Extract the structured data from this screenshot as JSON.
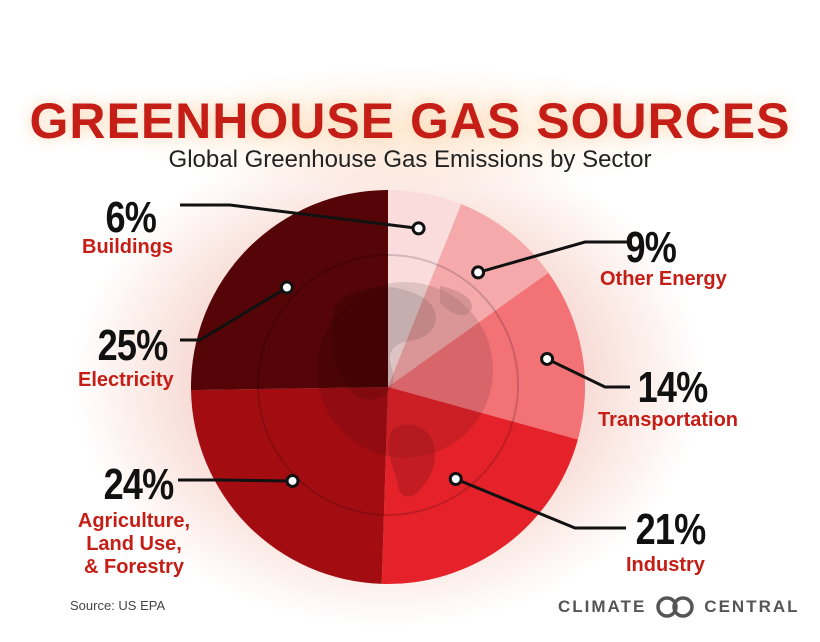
{
  "title": "GREENHOUSE GAS SOURCES",
  "subtitle": "Global Greenhouse Gas Emissions by Sector",
  "source": "Source: US EPA",
  "brand": {
    "left": "CLIMATE",
    "right": "CENTRAL",
    "icon": "two-rings-logo-icon"
  },
  "chart_data": {
    "type": "pie",
    "title": "GREENHOUSE GAS SOURCES",
    "subtitle": "Global Greenhouse Gas Emissions by Sector",
    "slices": [
      {
        "label": "Buildings",
        "value": 6,
        "display": "6%",
        "color": "#fadcdc"
      },
      {
        "label": "Other Energy",
        "value": 9,
        "display": "9%",
        "color": "#f5a9aa"
      },
      {
        "label": "Transportation",
        "value": 14,
        "display": "14%",
        "color": "#f27276"
      },
      {
        "label": "Industry",
        "value": 21,
        "display": "21%",
        "color": "#e5222a"
      },
      {
        "label": "Agriculture, Land Use, & Forestry",
        "value": 24,
        "display": "24%",
        "color": "#a30d12"
      },
      {
        "label": "Electricity",
        "value": 25,
        "display": "25%",
        "color": "#550507"
      }
    ],
    "start_angle_deg": 0,
    "direction": "clockwise",
    "background_icon": "globe-icon"
  },
  "labels": {
    "buildings": {
      "pct": "6%",
      "name": "Buildings"
    },
    "other_energy": {
      "pct": "9%",
      "name": "Other Energy"
    },
    "transportation": {
      "pct": "14%",
      "name": "Transportation"
    },
    "industry": {
      "pct": "21%",
      "name": "Industry"
    },
    "agriculture": {
      "pct": "24%",
      "name_lines": [
        "Agriculture,",
        "Land Use,",
        "& Forestry"
      ]
    },
    "electricity": {
      "pct": "25%",
      "name": "Electricity"
    }
  }
}
